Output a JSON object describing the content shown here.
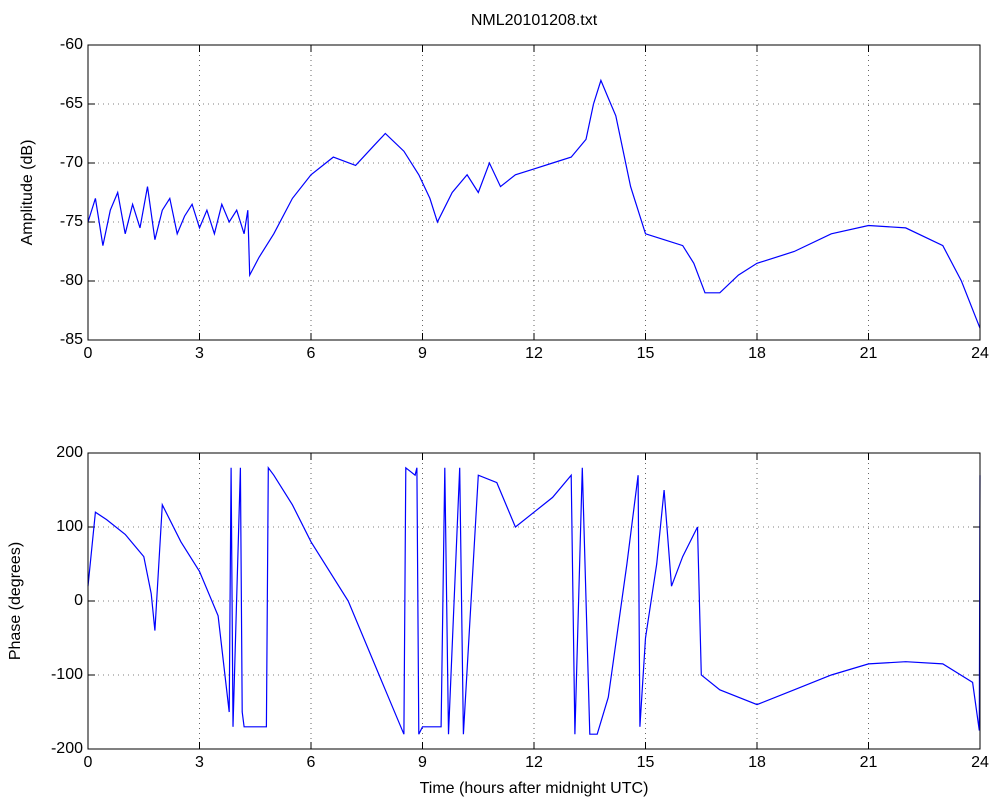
{
  "chart_data": [
    {
      "type": "line",
      "title": "NML20101208.txt",
      "ylabel": "Amplitude (dB)",
      "xlim": [
        0,
        24
      ],
      "xticks": [
        0,
        3,
        6,
        9,
        12,
        15,
        18,
        21,
        24
      ],
      "ylim": [
        -85,
        -60
      ],
      "yticks": [
        -85,
        -80,
        -75,
        -70,
        -65,
        -60
      ],
      "grid": true,
      "series": [
        {
          "name": "Amplitude",
          "color": "#0000ff",
          "x": [
            0,
            0.2,
            0.4,
            0.6,
            0.8,
            1.0,
            1.2,
            1.4,
            1.6,
            1.8,
            2.0,
            2.2,
            2.4,
            2.6,
            2.8,
            3.0,
            3.2,
            3.4,
            3.6,
            3.8,
            4.0,
            4.2,
            4.3,
            4.35,
            4.6,
            5.0,
            5.5,
            6.0,
            6.6,
            7.2,
            7.7,
            8.0,
            8.5,
            8.9,
            9.2,
            9.4,
            9.8,
            10.2,
            10.5,
            10.8,
            11.1,
            11.5,
            12.0,
            12.5,
            13.0,
            13.4,
            13.6,
            13.8,
            14.0,
            14.2,
            14.6,
            15.0,
            15.5,
            16.0,
            16.3,
            16.6,
            17.0,
            17.5,
            18.0,
            19.0,
            20.0,
            21.0,
            22.0,
            23.0,
            23.5,
            24.0
          ],
          "values": [
            -75,
            -73,
            -77,
            -74,
            -72.5,
            -76,
            -73.5,
            -75.5,
            -72,
            -76.5,
            -74,
            -73,
            -76,
            -74.5,
            -73.5,
            -75.5,
            -74,
            -76,
            -73.5,
            -75,
            -74,
            -76,
            -74,
            -79.5,
            -78,
            -76,
            -73,
            -71,
            -69.5,
            -70.2,
            -68.5,
            -67.5,
            -69,
            -71,
            -73,
            -75,
            -72.5,
            -71,
            -72.5,
            -70,
            -72,
            -71,
            -70.5,
            -70,
            -69.5,
            -68,
            -65,
            -63,
            -64.5,
            -66,
            -72,
            -76,
            -76.5,
            -77,
            -78.5,
            -81,
            -81,
            -79.5,
            -78.5,
            -77.5,
            -76,
            -75.3,
            -75.5,
            -77,
            -80,
            -84
          ]
        }
      ]
    },
    {
      "type": "line",
      "ylabel": "Phase (degrees)",
      "xlabel": "Time (hours after midnight UTC)",
      "xlim": [
        0,
        24
      ],
      "xticks": [
        0,
        3,
        6,
        9,
        12,
        15,
        18,
        21,
        24
      ],
      "ylim": [
        -200,
        200
      ],
      "yticks": [
        -200,
        -100,
        0,
        100,
        200
      ],
      "grid": true,
      "series": [
        {
          "name": "Phase",
          "color": "#0000ff",
          "x": [
            0,
            0.2,
            0.5,
            1.0,
            1.5,
            1.7,
            1.8,
            2.0,
            2.5,
            3.0,
            3.5,
            3.8,
            3.85,
            3.9,
            4.1,
            4.15,
            4.2,
            4.8,
            4.85,
            5.0,
            5.5,
            6.0,
            7.0,
            8.0,
            8.5,
            8.55,
            8.8,
            8.85,
            8.9,
            9.0,
            9.5,
            9.6,
            9.7,
            10.0,
            10.1,
            10.5,
            11.0,
            11.5,
            12.0,
            12.5,
            13.0,
            13.1,
            13.3,
            13.5,
            13.7,
            14.0,
            14.5,
            14.8,
            14.85,
            15.0,
            15.3,
            15.5,
            15.7,
            16.0,
            16.4,
            16.5,
            17.0,
            18.0,
            19.0,
            20.0,
            21.0,
            22.0,
            23.0,
            23.8,
            23.98,
            24.0
          ],
          "values": [
            20,
            120,
            110,
            90,
            60,
            10,
            -40,
            130,
            80,
            40,
            -20,
            -150,
            180,
            -170,
            180,
            -150,
            -170,
            -170,
            180,
            170,
            130,
            80,
            0,
            -120,
            -180,
            180,
            170,
            180,
            -180,
            -170,
            -170,
            180,
            -180,
            180,
            -180,
            170,
            160,
            100,
            120,
            140,
            170,
            -180,
            180,
            -180,
            -180,
            -130,
            50,
            170,
            -170,
            -50,
            50,
            150,
            20,
            60,
            100,
            -100,
            -120,
            -140,
            -120,
            -100,
            -85,
            -82,
            -85,
            -110,
            -175,
            170
          ]
        }
      ]
    }
  ]
}
